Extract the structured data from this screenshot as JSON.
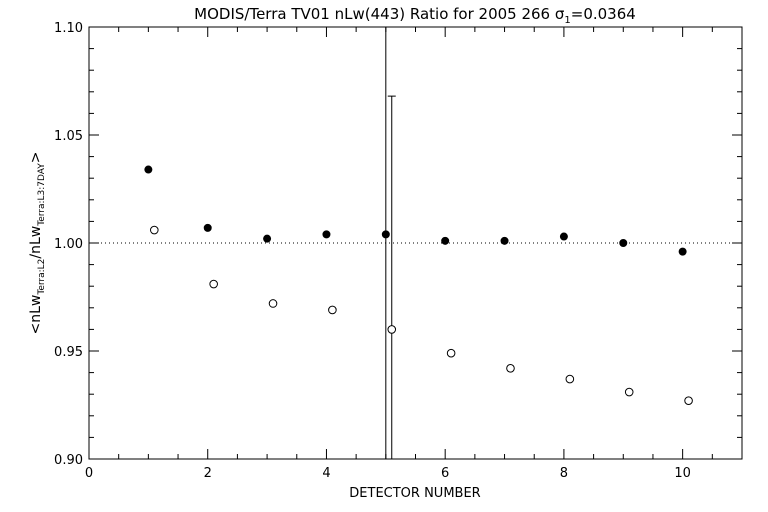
{
  "chart_data": {
    "type": "scatter",
    "title": "MODIS/Terra TV01 nLw(443) Ratio for 2005 266 σ",
    "title_sub": "1",
    "title_tail": "=0.0364",
    "xlabel": "DETECTOR NUMBER",
    "ylabel_parts": [
      "<nLw",
      "Terra:L2",
      "/nLw",
      "Terra:L3:7DAY",
      ">"
    ],
    "xlim": [
      0,
      11
    ],
    "ylim": [
      0.9,
      1.1
    ],
    "xticks": [
      0,
      2,
      4,
      6,
      8,
      10
    ],
    "xtick_labels": [
      "0",
      "2",
      "4",
      "6",
      "8",
      "10"
    ],
    "yticks": [
      0.9,
      0.95,
      1.0,
      1.05,
      1.1
    ],
    "ytick_labels": [
      "0.90",
      "0.95",
      "1.00",
      "1.05",
      "1.10"
    ],
    "reference_line": 1.0,
    "series": [
      {
        "name": "filled",
        "marker": "filled-circle",
        "x": [
          1,
          2,
          3,
          4,
          5,
          6,
          7,
          8,
          9,
          10
        ],
        "y": [
          1.034,
          1.007,
          1.002,
          1.004,
          1.004,
          1.001,
          1.001,
          1.003,
          1.0,
          0.996
        ],
        "errorbars": [
          {
            "x": 5,
            "low": 0.85,
            "high": 1.15
          }
        ]
      },
      {
        "name": "open",
        "marker": "open-circle",
        "x": [
          1.1,
          2.1,
          3.1,
          4.1,
          5.1,
          6.1,
          7.1,
          8.1,
          9.1,
          10.1
        ],
        "y": [
          1.006,
          0.981,
          0.972,
          0.969,
          0.96,
          0.949,
          0.942,
          0.937,
          0.931,
          0.927
        ],
        "errorbars": [
          {
            "x": 5.1,
            "low": 0.85,
            "high": 1.068
          }
        ]
      }
    ]
  }
}
